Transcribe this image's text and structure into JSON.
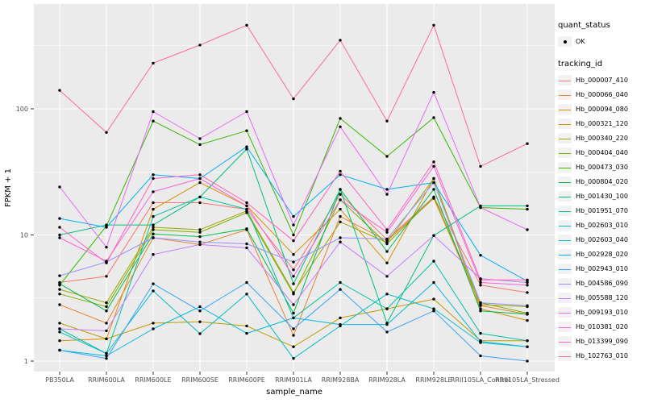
{
  "figure": {
    "panel_bg": "#EBEBEB",
    "grid_color": "#FFFFFF",
    "key_bg": "#F2F2F2",
    "point_color": "#000000",
    "tick_label_color": "#4D4D4D",
    "axis_title_color": "#000000"
  },
  "legend": {
    "quant_title": "quant_status",
    "quant_items": [
      {
        "label": "OK",
        "marker": "point"
      }
    ],
    "tracking_title": "tracking_id"
  },
  "chart_data": {
    "type": "line",
    "title": "",
    "xlabel": "sample_name",
    "ylabel": "FPKM + 1",
    "y_scale": "log10",
    "y_ticks": [
      1,
      10,
      100
    ],
    "y_minor": [
      3.162,
      31.62,
      316.2
    ],
    "ylim": [
      0.83,
      640
    ],
    "grid": true,
    "legend_position": "right",
    "point_marker": "OK",
    "categories": [
      "PB350LA",
      "RRIM600LA",
      "RRIM600LE",
      "RRIM600SE",
      "RRIM600PE",
      "RRIM901LA",
      "RRIM928BA",
      "RRIM928LA",
      "RRIM928LE",
      "RRII105LA_Control",
      "RRII105LA_Stressed"
    ],
    "series": [
      {
        "name": "Hb_000007_410",
        "color": "#F8766D",
        "values": [
          4.2,
          4.7,
          18,
          18,
          16,
          5.3,
          21,
          9.2,
          20,
          4.0,
          3.5
        ]
      },
      {
        "name": "Hb_000066_040",
        "color": "#EA8331",
        "values": [
          2.8,
          2.0,
          9.5,
          8.4,
          11,
          1.6,
          14,
          9.0,
          19.5,
          2.75,
          2.35
        ]
      },
      {
        "name": "Hb_000094_080",
        "color": "#D89000",
        "values": [
          1.45,
          1.5,
          16,
          26,
          17,
          7.0,
          16,
          6.0,
          28,
          2.6,
          2.1
        ]
      },
      {
        "name": "Hb_000321_120",
        "color": "#C09B00",
        "values": [
          2.0,
          1.5,
          2.0,
          2.05,
          1.9,
          1.3,
          2.2,
          2.6,
          3.1,
          1.45,
          1.45
        ]
      },
      {
        "name": "Hb_000340_220",
        "color": "#A3A500",
        "values": [
          3.7,
          2.9,
          11.5,
          11,
          15.5,
          3.5,
          12.7,
          8.7,
          28,
          2.8,
          2.7
        ]
      },
      {
        "name": "Hb_000404_040",
        "color": "#7CAE00",
        "values": [
          3.4,
          2.7,
          11,
          10.5,
          15,
          3.4,
          19,
          8.5,
          20,
          2.9,
          2.4
        ]
      },
      {
        "name": "Hb_000473_030",
        "color": "#39B600",
        "values": [
          4.0,
          11.8,
          80,
          52,
          67,
          10,
          84,
          42,
          85,
          16.5,
          16
        ]
      },
      {
        "name": "Hb_000804_020",
        "color": "#00BB4E",
        "values": [
          4.1,
          2.5,
          10.2,
          9.7,
          11.2,
          2.4,
          23,
          7.4,
          23,
          2.5,
          2.35
        ]
      },
      {
        "name": "Hb_001430_100",
        "color": "#00BF7D",
        "values": [
          10,
          12,
          12,
          20,
          48,
          4.1,
          23,
          2.0,
          9.9,
          17,
          17
        ]
      },
      {
        "name": "Hb_001951_070",
        "color": "#00C1A3",
        "values": [
          1.8,
          1.15,
          14,
          20,
          16,
          2.2,
          4.2,
          2.6,
          6.2,
          1.66,
          1.45
        ]
      },
      {
        "name": "Hb_002603_010",
        "color": "#00BFC4",
        "values": [
          1.7,
          1.15,
          3.6,
          1.65,
          3.4,
          1.05,
          1.9,
          3.4,
          2.6,
          1.4,
          1.3
        ]
      },
      {
        "name": "Hb_002603_040",
        "color": "#00BAE0",
        "values": [
          1.22,
          1.1,
          1.8,
          2.7,
          1.66,
          2.2,
          1.95,
          1.95,
          4.2,
          1.43,
          1.3
        ]
      },
      {
        "name": "Hb_002928_020",
        "color": "#00B0F6",
        "values": [
          13.5,
          11.5,
          30,
          28,
          50,
          14,
          30,
          23,
          26,
          6.9,
          4.3
        ]
      },
      {
        "name": "Hb_002943_010",
        "color": "#35A2FF",
        "values": [
          1.22,
          1.05,
          4.1,
          2.5,
          4.2,
          1.8,
          3.7,
          1.7,
          2.5,
          1.1,
          1.0
        ]
      },
      {
        "name": "Hb_004586_090",
        "color": "#9590FF",
        "values": [
          4.75,
          6.1,
          9.5,
          8.8,
          8.5,
          6.1,
          9.5,
          9.3,
          26,
          2.9,
          2.75
        ]
      },
      {
        "name": "Hb_005588_120",
        "color": "#C77CFF",
        "values": [
          1.8,
          1.74,
          7.0,
          8.4,
          7.9,
          2.8,
          8.8,
          4.7,
          9.9,
          4.5,
          4.2
        ]
      },
      {
        "name": "Hb_009193_010",
        "color": "#E76BF3",
        "values": [
          24,
          8.0,
          95,
          58,
          95,
          12,
          72,
          21,
          135,
          16.5,
          11
        ]
      },
      {
        "name": "Hb_010381_020",
        "color": "#FA62DB",
        "values": [
          9.5,
          6.2,
          22,
          28,
          17,
          4.7,
          19,
          10.5,
          35,
          4.2,
          4.0
        ]
      },
      {
        "name": "Hb_013399_090",
        "color": "#FF62BC",
        "values": [
          11.5,
          6.0,
          28,
          30,
          18,
          9.0,
          32,
          11,
          38,
          4.4,
          4.4
        ]
      },
      {
        "name": "Hb_102763_010",
        "color": "#FF6A98",
        "values": [
          140,
          65,
          230,
          320,
          460,
          120,
          350,
          80,
          460,
          35,
          53
        ]
      }
    ]
  }
}
